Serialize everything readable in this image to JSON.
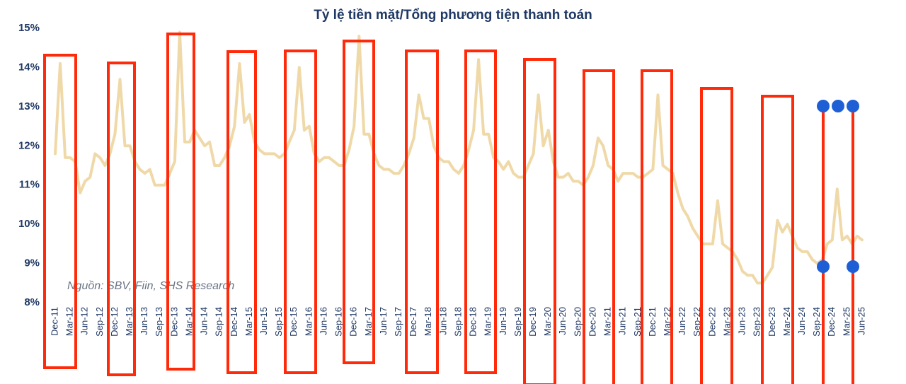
{
  "chart_data": {
    "type": "line",
    "title": "Tỷ lệ tiền mặt/Tổng phương tiện thanh toán",
    "source": "Nguồn: SBV, Fiin, SHS Research",
    "color": "#f0d9a8",
    "categories": [
      "Dec-11",
      null,
      null,
      "Mar-12",
      null,
      null,
      "Jun-12",
      null,
      null,
      "Sep-12",
      null,
      null,
      "Dec-12",
      null,
      null,
      "Mar-13",
      null,
      null,
      "Jun-13",
      null,
      null,
      "Sep-13",
      null,
      null,
      "Dec-13",
      null,
      null,
      "Mar-14",
      null,
      null,
      "Jun-14",
      null,
      null,
      "Sep-14",
      null,
      null,
      "Dec-14",
      null,
      null,
      "Mar-15",
      null,
      null,
      "Jun-15",
      null,
      null,
      "Sep-15",
      null,
      null,
      "Dec-15",
      null,
      null,
      "Mar-16",
      null,
      null,
      "Jun-16",
      null,
      null,
      "Sep-16",
      null,
      null,
      "Dec-16",
      null,
      null,
      "Mar-17",
      null,
      null,
      "Jun-17",
      null,
      null,
      "Sep-17",
      null,
      null,
      "Dec-17",
      null,
      null,
      "Mar-18",
      null,
      null,
      "Jun-18",
      null,
      null,
      "Sep-18",
      null,
      null,
      "Dec-18",
      null,
      null,
      "Mar-19",
      null,
      null,
      "Jun-19",
      null,
      null,
      "Sep-19",
      null,
      null,
      "Dec-19",
      null,
      null,
      "Mar-20",
      null,
      null,
      "Jun-20",
      null,
      null,
      "Sep-20",
      null,
      null,
      "Dec-20",
      null,
      null,
      "Mar-21",
      null,
      null,
      "Jun-21",
      null,
      null,
      "Sep-21",
      null,
      null,
      "Dec-21",
      null,
      null,
      "Mar-22",
      null,
      null,
      "Jun-22",
      null,
      null,
      "Sep-22",
      null,
      null,
      "Dec-22",
      null,
      null,
      "Mar-23",
      null,
      null,
      "Jun-23",
      null,
      null,
      "Sep-23",
      null,
      null,
      "Dec-23",
      null,
      null,
      "Mar-24",
      null,
      null,
      "Jun-24",
      null,
      null,
      "Sep-24",
      null,
      null,
      "Dec-24",
      null,
      null,
      "Mar-25",
      null,
      null,
      "Jun-25"
    ],
    "values": [
      11.8,
      14.1,
      11.7,
      11.7,
      11.6,
      10.8,
      11.1,
      11.2,
      11.8,
      11.7,
      11.5,
      11.8,
      12.3,
      13.7,
      12.0,
      12.0,
      11.6,
      11.4,
      11.3,
      11.4,
      11.0,
      11.0,
      11.0,
      11.3,
      11.6,
      14.9,
      12.1,
      12.1,
      12.4,
      12.2,
      12.0,
      12.1,
      11.5,
      11.5,
      11.7,
      12.0,
      12.5,
      14.1,
      12.6,
      12.8,
      12.1,
      11.9,
      11.8,
      11.8,
      11.8,
      11.7,
      11.8,
      12.1,
      12.4,
      14.0,
      12.4,
      12.5,
      11.8,
      11.6,
      11.7,
      11.7,
      11.6,
      11.5,
      11.5,
      11.9,
      12.5,
      14.8,
      12.3,
      12.3,
      11.8,
      11.5,
      11.4,
      11.4,
      11.3,
      11.3,
      11.5,
      11.8,
      12.2,
      13.3,
      12.7,
      12.7,
      12.0,
      11.7,
      11.6,
      11.6,
      11.4,
      11.3,
      11.5,
      11.9,
      12.4,
      14.2,
      12.3,
      12.3,
      11.7,
      11.6,
      11.4,
      11.6,
      11.3,
      11.2,
      11.2,
      11.5,
      11.8,
      13.3,
      12.0,
      12.4,
      11.6,
      11.2,
      11.2,
      11.3,
      11.1,
      11.1,
      11.0,
      11.2,
      11.5,
      12.2,
      12.0,
      11.5,
      11.4,
      11.1,
      11.3,
      11.3,
      11.3,
      11.2,
      11.2,
      11.3,
      11.4,
      13.3,
      11.5,
      11.4,
      11.3,
      10.8,
      10.4,
      10.2,
      9.9,
      9.7,
      9.5,
      9.5,
      9.5,
      10.6,
      9.5,
      9.4,
      9.3,
      9.1,
      8.8,
      8.7,
      8.7,
      8.5,
      8.5,
      8.7,
      8.9,
      10.1,
      9.8,
      10.0,
      9.7,
      9.4,
      9.3,
      9.3,
      9.1,
      9.0,
      9.1,
      9.5,
      9.6,
      10.9,
      9.6,
      9.7,
      9.5,
      9.7,
      9.6
    ],
    "ylim": [
      8,
      15
    ],
    "yticks": [
      {
        "value": 8,
        "label": "8%"
      },
      {
        "value": 9,
        "label": "9%"
      },
      {
        "value": 10,
        "label": "10%"
      },
      {
        "value": 11,
        "label": "11%"
      },
      {
        "value": 12,
        "label": "12%"
      },
      {
        "value": 13,
        "label": "13%"
      },
      {
        "value": 14,
        "label": "14%"
      },
      {
        "value": 15,
        "label": "15%"
      }
    ]
  }
}
